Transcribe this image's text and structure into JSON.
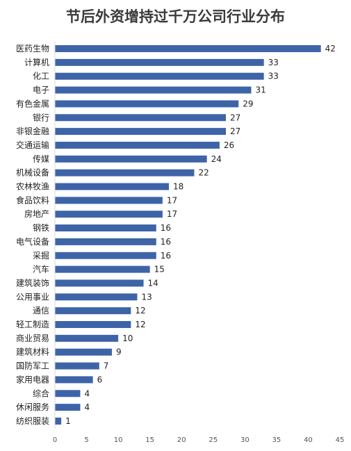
{
  "chart_data": {
    "type": "bar",
    "orientation": "horizontal",
    "title": "节后外资增持过千万公司行业分布",
    "xlabel": "",
    "ylabel": "",
    "xlim": [
      0,
      45
    ],
    "ticks": [
      0,
      5,
      10,
      15,
      20,
      25,
      30,
      35,
      40,
      45
    ],
    "grid": false,
    "legend": "none",
    "bar_color": "#3e64a8",
    "categories": [
      "医药生物",
      "计算机",
      "化工",
      "电子",
      "有色金属",
      "银行",
      "非银金融",
      "交通运输",
      "传媒",
      "机械设备",
      "农林牧渔",
      "食品饮料",
      "房地产",
      "钢铁",
      "电气设备",
      "采掘",
      "汽车",
      "建筑装饰",
      "公用事业",
      "通信",
      "轻工制造",
      "商业贸易",
      "建筑材料",
      "国防军工",
      "家用电器",
      "综合",
      "休闲服务",
      "纺织服装"
    ],
    "values": [
      42,
      33,
      33,
      31,
      29,
      27,
      27,
      26,
      24,
      22,
      18,
      17,
      17,
      16,
      16,
      16,
      15,
      14,
      13,
      12,
      12,
      10,
      9,
      7,
      6,
      4,
      4,
      1
    ]
  }
}
